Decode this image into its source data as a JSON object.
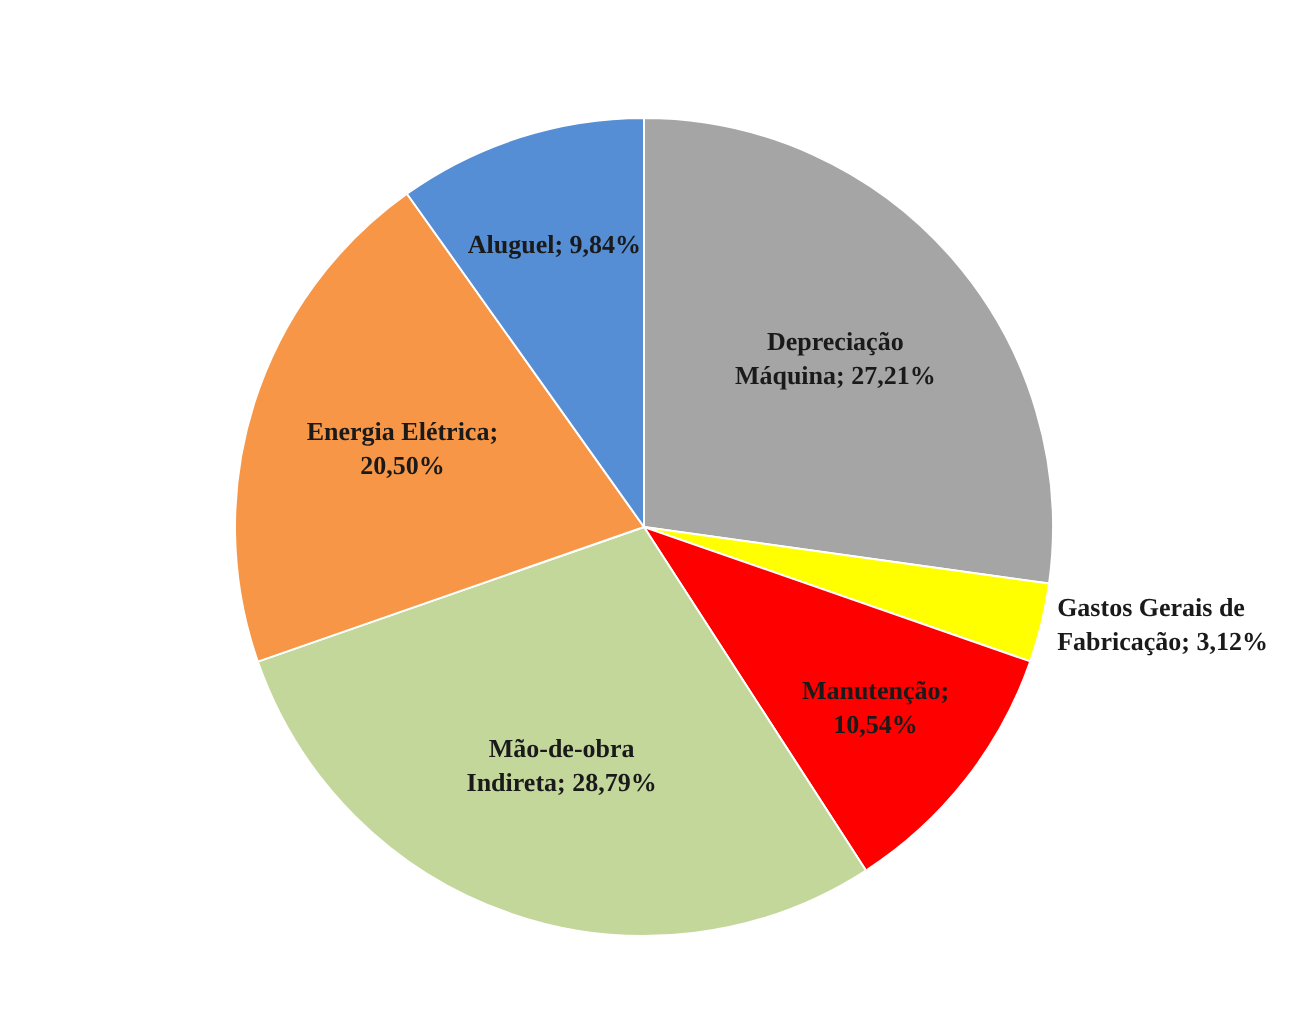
{
  "chart_data": {
    "type": "pie",
    "categories": [
      "Depreciação Máquina",
      "Gastos Gerais de Fabricação",
      "Manutenção",
      "Mão-de-obra Indireta",
      "Energia Elétrica",
      "Aluguel"
    ],
    "values": [
      27.21,
      3.12,
      10.54,
      28.79,
      20.5,
      9.84
    ],
    "colors": [
      "#a5a5a5",
      "#ffff00",
      "#ff0000",
      "#c4d79b",
      "#f79646",
      "#558ed5"
    ],
    "value_labels": [
      "; 27,21%",
      "; 3,12%",
      "; 10,54%",
      "; 28,79%",
      "; 20,50%",
      "; 9,84%"
    ],
    "legend": false
  }
}
